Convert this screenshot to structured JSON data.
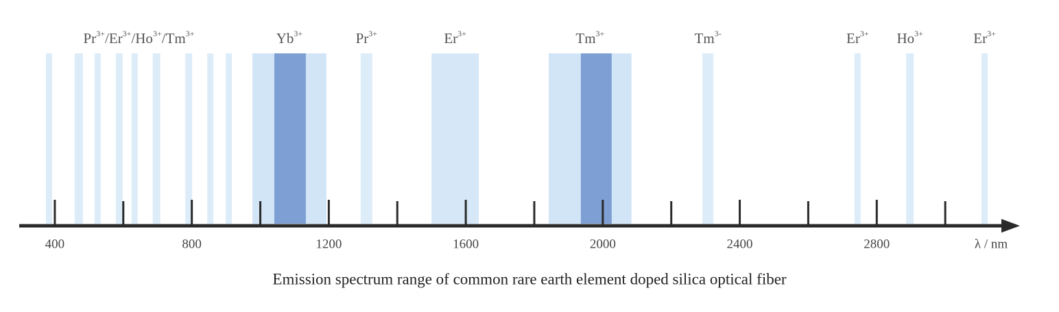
{
  "chart_data": {
    "type": "spectrum",
    "caption": "Emission spectrum range of common rare earth element doped silica optical fiber",
    "x_label": "λ / nm",
    "xlim": [
      300,
      3214
    ],
    "xticks": [
      400,
      800,
      1200,
      1600,
      2000,
      2400,
      2800
    ],
    "minor_xticks": [
      600,
      1000,
      1400,
      1800,
      2200,
      2600,
      3000
    ],
    "groups": [
      {
        "separator": "/",
        "ions": [
          {
            "symbol": "Pr",
            "charge": "3+"
          },
          {
            "symbol": "Er",
            "charge": "3+"
          },
          {
            "symbol": "Ho",
            "charge": "3+"
          },
          {
            "symbol": "Tm",
            "charge": "3+"
          }
        ],
        "bands": [
          {
            "start": 374,
            "end": 392,
            "color": "#dcecf9"
          },
          {
            "start": 458,
            "end": 482,
            "color": "#dcecf9"
          },
          {
            "start": 516,
            "end": 534,
            "color": "#dcecf9"
          },
          {
            "start": 578,
            "end": 598,
            "color": "#dcecf9"
          },
          {
            "start": 624,
            "end": 642,
            "color": "#dcecf9"
          },
          {
            "start": 686,
            "end": 708,
            "color": "#dcecf9"
          },
          {
            "start": 781,
            "end": 801,
            "color": "#dcecf9"
          },
          {
            "start": 845,
            "end": 863,
            "color": "#dcecf9"
          },
          {
            "start": 899,
            "end": 917,
            "color": "#dcecf9"
          }
        ]
      },
      {
        "ions": [
          {
            "symbol": "Yb",
            "charge": "3+"
          }
        ],
        "bands": [
          {
            "start": 977,
            "end": 1193,
            "color": "#d2e5f7"
          },
          {
            "start": 1041,
            "end": 1133,
            "color": "#7d9fd3"
          }
        ]
      },
      {
        "ions": [
          {
            "symbol": "Pr",
            "charge": "3+"
          }
        ],
        "bands": [
          {
            "start": 1293,
            "end": 1327,
            "color": "#dcecf9"
          }
        ]
      },
      {
        "ions": [
          {
            "symbol": "Er",
            "charge": "3+"
          }
        ],
        "bands": [
          {
            "start": 1500,
            "end": 1638,
            "color": "#d6e8f8"
          }
        ]
      },
      {
        "ions": [
          {
            "symbol": "Tm",
            "charge": "3+"
          }
        ],
        "bands": [
          {
            "start": 1842,
            "end": 2084,
            "color": "#d2e5f7"
          },
          {
            "start": 1936,
            "end": 2026,
            "color": "#7d9fd3"
          }
        ]
      },
      {
        "ions": [
          {
            "symbol": "Tm",
            "charge": "3-"
          }
        ],
        "bands": [
          {
            "start": 2291,
            "end": 2323,
            "color": "#dcecf9"
          }
        ]
      },
      {
        "ions": [
          {
            "symbol": "Er",
            "charge": "3+"
          }
        ],
        "bands": [
          {
            "start": 2735,
            "end": 2753,
            "color": "#dcecf9"
          }
        ]
      },
      {
        "ions": [
          {
            "symbol": "Ho",
            "charge": "3+"
          }
        ],
        "bands": [
          {
            "start": 2886,
            "end": 2908,
            "color": "#dcecf9"
          }
        ]
      },
      {
        "ions": [
          {
            "symbol": "Er",
            "charge": "3+"
          }
        ],
        "bands": [
          {
            "start": 3106,
            "end": 3124,
            "color": "#dcecf9"
          }
        ]
      }
    ]
  }
}
